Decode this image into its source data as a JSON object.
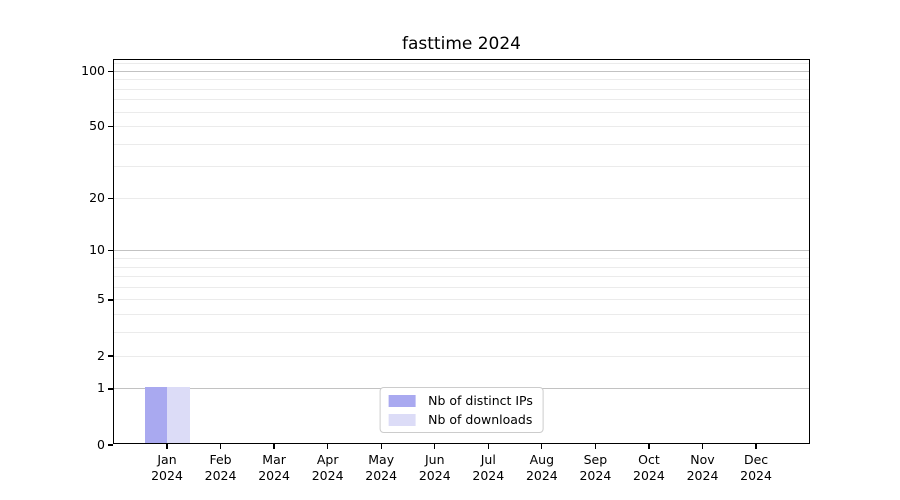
{
  "chart_data": {
    "type": "bar",
    "title": "fasttime 2024",
    "yscale": "log1p",
    "ylim": [
      0,
      115
    ],
    "yticks": [
      0,
      1,
      2,
      5,
      10,
      20,
      50,
      100
    ],
    "major_gridlines": [
      1,
      10,
      100
    ],
    "minor_gridlines": [
      2,
      3,
      4,
      5,
      6,
      7,
      8,
      9,
      20,
      30,
      40,
      50,
      60,
      70,
      80,
      90,
      110
    ],
    "grid": true,
    "legend_position": "lower center",
    "categories": [
      "Jan 2024",
      "Feb 2024",
      "Mar 2024",
      "Apr 2024",
      "May 2024",
      "Jun 2024",
      "Jul 2024",
      "Aug 2024",
      "Sep 2024",
      "Oct 2024",
      "Nov 2024",
      "Dec 2024"
    ],
    "series": [
      {
        "name": "Nb of distinct IPs",
        "color": "#a9a9f0",
        "values": [
          1,
          0,
          0,
          0,
          0,
          0,
          0,
          0,
          0,
          0,
          0,
          0
        ]
      },
      {
        "name": "Nb of downloads",
        "color": "#dcdcf7",
        "values": [
          1,
          0,
          0,
          0,
          0,
          0,
          0,
          0,
          0,
          0,
          0,
          0
        ]
      }
    ],
    "colors": {
      "major_grid": "#c2c2c2",
      "minor_grid": "#ebebeb",
      "spine": "#000000",
      "text": "#000000",
      "background": "#ffffff",
      "legend_border": "#cccccc"
    }
  }
}
